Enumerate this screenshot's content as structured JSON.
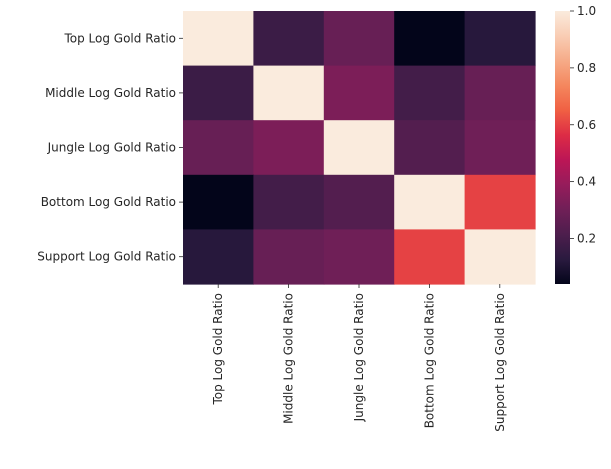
{
  "chart_data": {
    "type": "heatmap",
    "title": "",
    "xlabel": "",
    "ylabel": "",
    "rows": [
      "Top Log Gold Ratio",
      "Middle Log Gold Ratio",
      "Jungle Log Gold Ratio",
      "Bottom Log Gold Ratio",
      "Support Log Gold Ratio"
    ],
    "columns": [
      "Top Log Gold Ratio",
      "Middle Log Gold Ratio",
      "Jungle Log Gold Ratio",
      "Bottom Log Gold Ratio",
      "Support Log Gold Ratio"
    ],
    "values": [
      [
        1.0,
        0.17,
        0.28,
        0.04,
        0.12
      ],
      [
        0.17,
        1.0,
        0.33,
        0.19,
        0.28
      ],
      [
        0.28,
        0.33,
        1.0,
        0.23,
        0.3
      ],
      [
        0.04,
        0.19,
        0.23,
        1.0,
        0.6
      ],
      [
        0.12,
        0.28,
        0.3,
        0.6,
        1.0
      ]
    ],
    "colorbar": {
      "range": [
        0.04,
        1.0
      ],
      "ticks": [
        0.2,
        0.4,
        0.6,
        0.8,
        1.0
      ],
      "tick_labels": [
        "0.2",
        "0.4",
        "0.6",
        "0.8",
        "1.0"
      ],
      "colormap": "rocket",
      "stops": [
        "#03051a",
        "#2a1a3f",
        "#4d1e4d",
        "#701f57",
        "#961c5b",
        "#bc1656",
        "#dd2c45",
        "#f06043",
        "#f4875e",
        "#f6ab88",
        "#f9cdb4",
        "#faebdd"
      ]
    },
    "grid": false
  }
}
